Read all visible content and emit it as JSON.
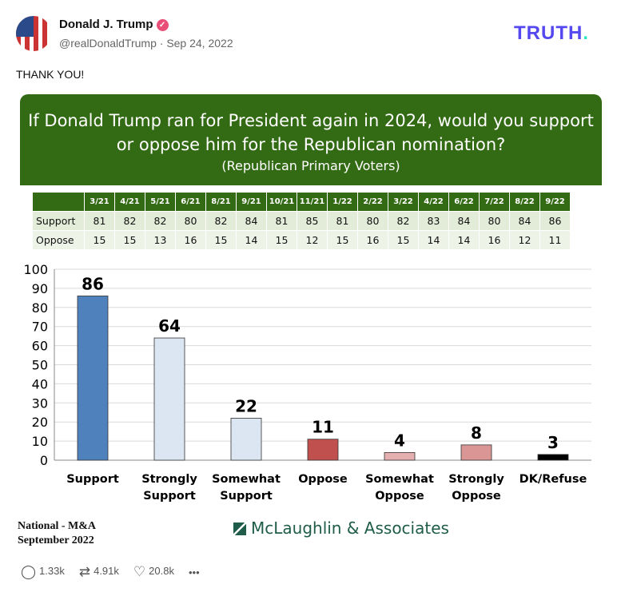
{
  "post": {
    "author": "Donald J. Trump",
    "handle": "@realDonaldTrump",
    "date": "Sep 24, 2022",
    "text": "THANK YOU!",
    "logo": "TRUTH",
    "logo_dot": ".",
    "verified_icon": "check-badge-icon"
  },
  "graphic": {
    "question": "If Donald Trump ran for President again in 2024, would you support or oppose him for the Republican nomination?",
    "subtitle": "(Republican Primary Voters)",
    "table": {
      "columns": [
        "3/21",
        "4/21",
        "5/21",
        "6/21",
        "8/21",
        "9/21",
        "10/21",
        "11/21",
        "1/22",
        "2/22",
        "3/22",
        "4/22",
        "6/22",
        "7/22",
        "8/22",
        "9/22"
      ],
      "rows": [
        {
          "label": "Support",
          "values": [
            81,
            82,
            82,
            80,
            82,
            84,
            81,
            85,
            81,
            80,
            82,
            83,
            84,
            80,
            84,
            86
          ]
        },
        {
          "label": "Oppose",
          "values": [
            15,
            15,
            13,
            16,
            15,
            14,
            15,
            12,
            15,
            16,
            15,
            14,
            14,
            16,
            12,
            11
          ]
        }
      ]
    },
    "footer_left": [
      "National - M&A",
      "September 2022"
    ],
    "footer_brand": "McLaughlin & Associates"
  },
  "chart_data": {
    "type": "bar",
    "categories": [
      "Support",
      "Strongly Support",
      "Somewhat Support",
      "Oppose",
      "Somewhat Oppose",
      "Strongly Oppose",
      "DK/Refuse"
    ],
    "values": [
      86,
      64,
      22,
      11,
      4,
      8,
      3
    ],
    "colors": [
      "#4f81bd",
      "#dce6f2",
      "#dce6f2",
      "#c0504d",
      "#e6b0b0",
      "#d99694",
      "#000000"
    ],
    "ylim": [
      0,
      100
    ],
    "yticks": [
      0,
      10,
      20,
      30,
      40,
      50,
      60,
      70,
      80,
      90,
      100
    ],
    "grid": true
  },
  "actions": {
    "replies": "1.33k",
    "retruths": "4.91k",
    "likes": "20.8k",
    "more": "•••"
  }
}
